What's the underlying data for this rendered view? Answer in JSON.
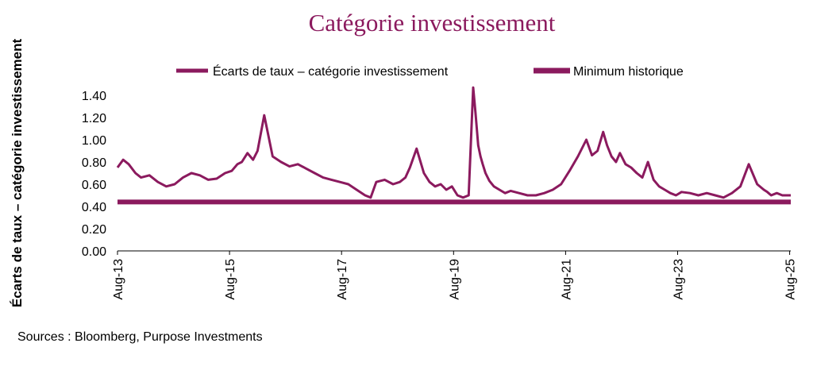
{
  "chart_data": {
    "type": "line",
    "title": "Catégorie investissement",
    "ylabel": "Écarts de taux – catégorie investissement",
    "xlabel": "",
    "ylim": [
      0,
      1.5
    ],
    "yticks": [
      0.0,
      0.2,
      0.4,
      0.6,
      0.8,
      1.0,
      1.2,
      1.4
    ],
    "ytick_labels": [
      "0.00",
      "0.20",
      "0.40",
      "0.60",
      "0.80",
      "1.00",
      "1.20",
      "1.40"
    ],
    "xlim": [
      2013.58,
      2025.6
    ],
    "xticks": [
      2013.58,
      2015.58,
      2017.58,
      2019.58,
      2021.58,
      2023.58,
      2025.58
    ],
    "xtick_labels": [
      "Aug-13",
      "Aug-15",
      "Aug-17",
      "Aug-19",
      "Aug-21",
      "Aug-23",
      "Aug-25"
    ],
    "legend_position": "top-center",
    "series": [
      {
        "name": "Écarts de taux – catégorie investissement",
        "color": "#8b1a5e",
        "x": [
          2013.58,
          2013.68,
          2013.78,
          2013.9,
          2014.0,
          2014.15,
          2014.3,
          2014.45,
          2014.6,
          2014.75,
          2014.9,
          2015.05,
          2015.2,
          2015.35,
          2015.5,
          2015.62,
          2015.72,
          2015.8,
          2015.9,
          2016.0,
          2016.08,
          2016.2,
          2016.35,
          2016.5,
          2016.65,
          2016.8,
          2016.95,
          2017.1,
          2017.25,
          2017.4,
          2017.55,
          2017.7,
          2017.85,
          2018.0,
          2018.1,
          2018.2,
          2018.35,
          2018.5,
          2018.62,
          2018.72,
          2018.8,
          2018.92,
          2019.05,
          2019.15,
          2019.25,
          2019.35,
          2019.45,
          2019.55,
          2019.65,
          2019.75,
          2019.85,
          2019.93,
          2019.97,
          2020.02,
          2020.06,
          2020.1,
          2020.15,
          2020.22,
          2020.3,
          2020.4,
          2020.5,
          2020.6,
          2020.75,
          2020.9,
          2021.05,
          2021.2,
          2021.35,
          2021.5,
          2021.65,
          2021.8,
          2021.95,
          2022.05,
          2022.15,
          2022.25,
          2022.32,
          2022.4,
          2022.48,
          2022.55,
          2022.65,
          2022.75,
          2022.85,
          2022.95,
          2023.05,
          2023.15,
          2023.25,
          2023.35,
          2023.45,
          2023.55,
          2023.65,
          2023.8,
          2023.95,
          2024.1,
          2024.25,
          2024.4,
          2024.55,
          2024.7,
          2024.85,
          2025.0,
          2025.12,
          2025.18,
          2025.25,
          2025.35,
          2025.45,
          2025.55,
          2025.6
        ],
        "y": [
          0.75,
          0.82,
          0.78,
          0.7,
          0.66,
          0.68,
          0.62,
          0.58,
          0.6,
          0.66,
          0.7,
          0.68,
          0.64,
          0.65,
          0.7,
          0.72,
          0.78,
          0.8,
          0.88,
          0.82,
          0.9,
          1.22,
          0.85,
          0.8,
          0.76,
          0.78,
          0.74,
          0.7,
          0.66,
          0.64,
          0.62,
          0.6,
          0.55,
          0.5,
          0.48,
          0.62,
          0.64,
          0.6,
          0.62,
          0.66,
          0.75,
          0.92,
          0.7,
          0.62,
          0.58,
          0.6,
          0.55,
          0.58,
          0.5,
          0.48,
          0.5,
          1.47,
          1.25,
          0.95,
          0.85,
          0.78,
          0.7,
          0.63,
          0.58,
          0.55,
          0.52,
          0.54,
          0.52,
          0.5,
          0.5,
          0.52,
          0.55,
          0.6,
          0.72,
          0.85,
          1.0,
          0.86,
          0.9,
          1.07,
          0.95,
          0.85,
          0.8,
          0.88,
          0.78,
          0.75,
          0.7,
          0.66,
          0.8,
          0.64,
          0.58,
          0.55,
          0.52,
          0.5,
          0.53,
          0.52,
          0.5,
          0.52,
          0.5,
          0.48,
          0.52,
          0.58,
          0.78,
          0.6,
          0.55,
          0.53,
          0.5,
          0.52,
          0.5,
          0.5,
          0.5
        ]
      },
      {
        "name": "Minimum historique",
        "color": "#8b1a5e",
        "x": [
          2013.58,
          2025.6
        ],
        "y": [
          0.44,
          0.44
        ]
      }
    ],
    "source_note": "Sources : Bloomberg, Purpose Investments"
  }
}
